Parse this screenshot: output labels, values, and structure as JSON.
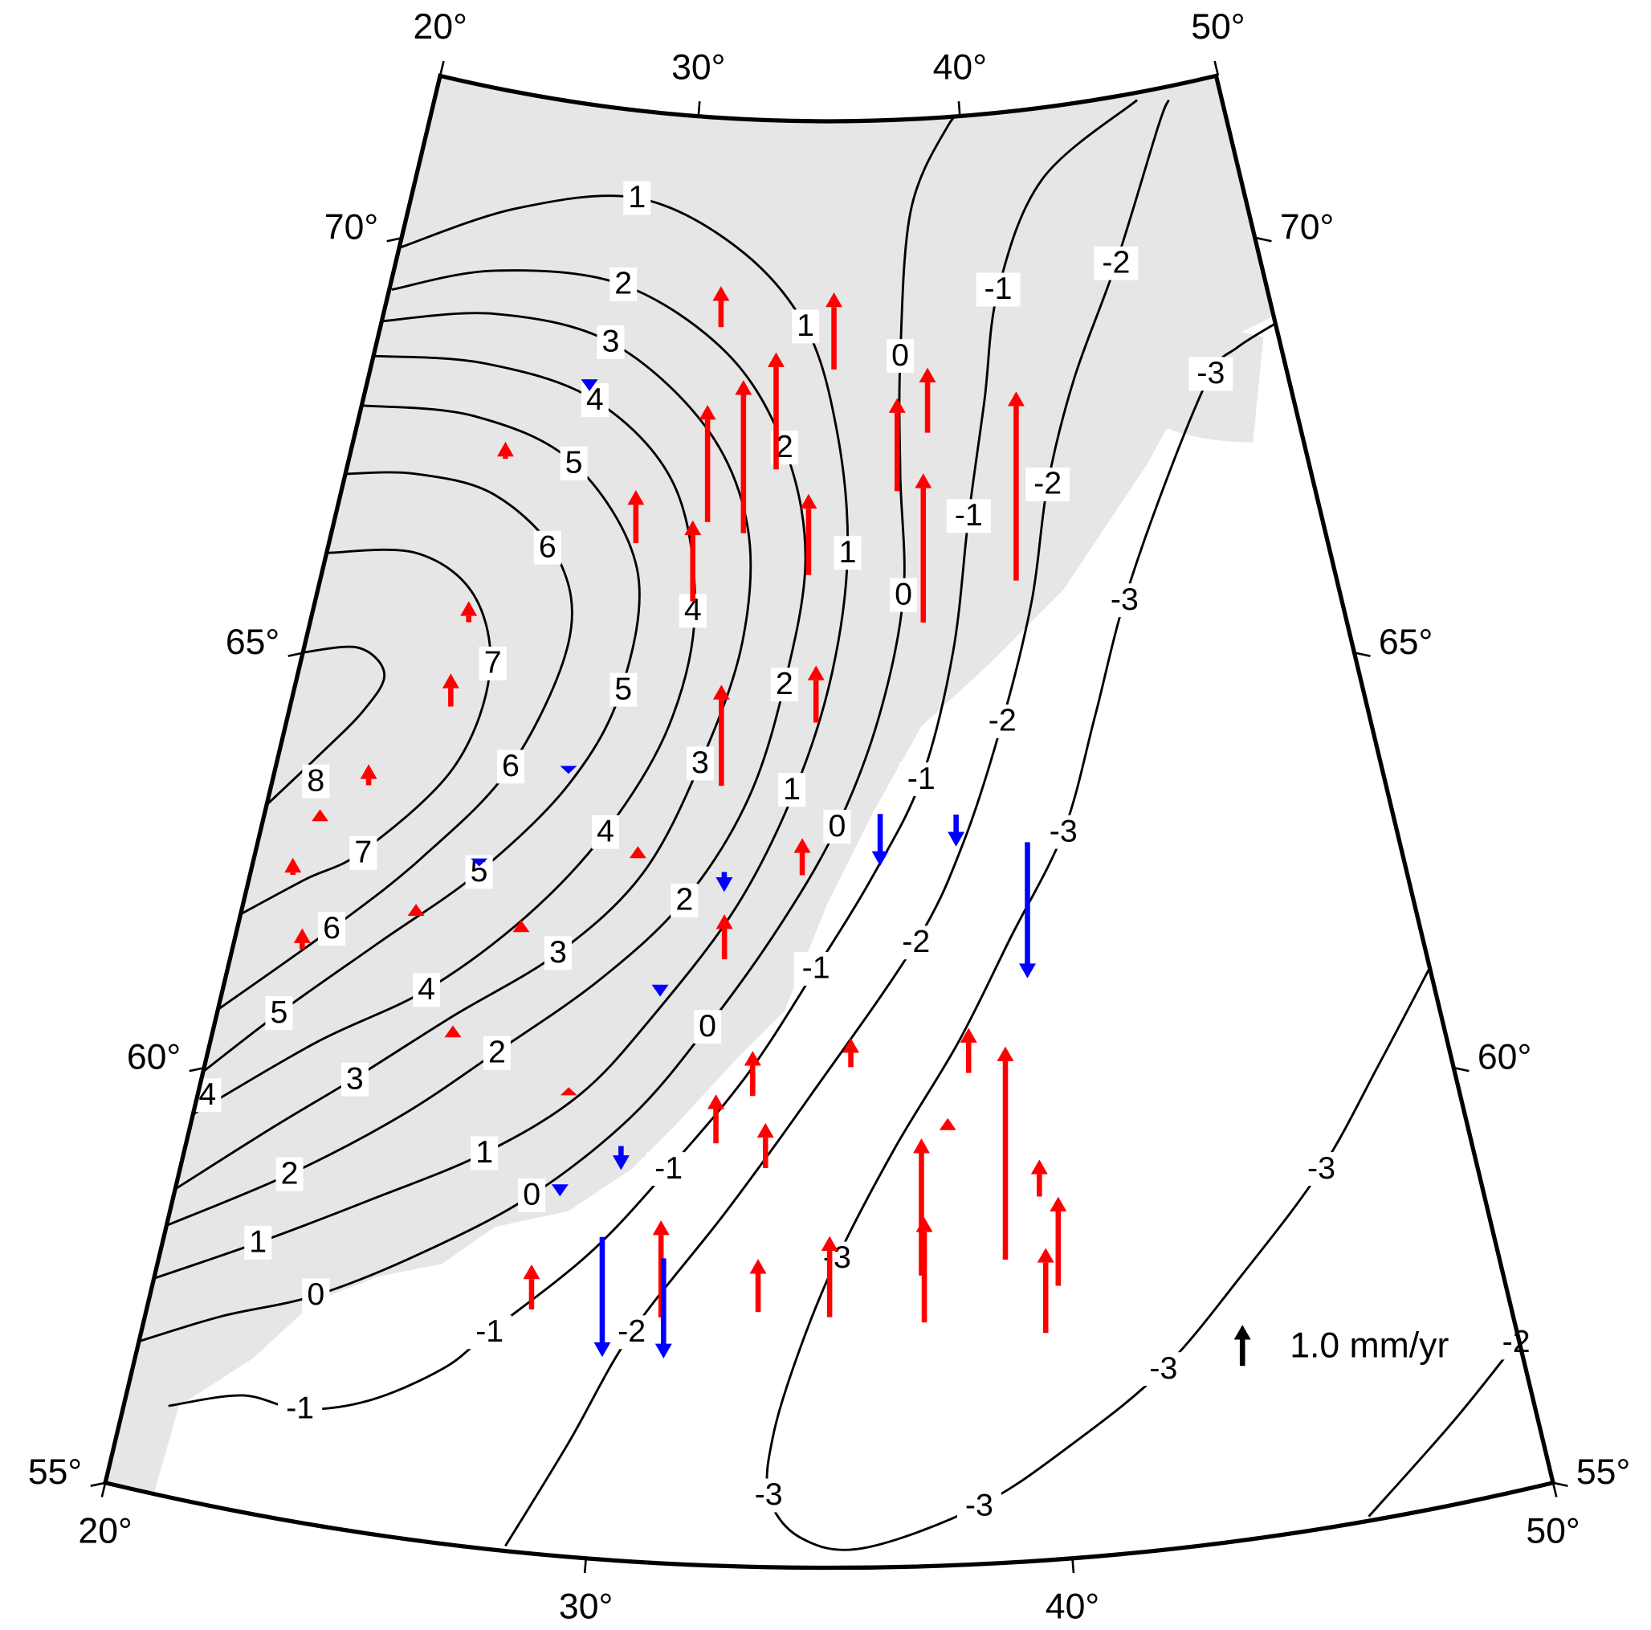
{
  "map": {
    "lon_ticks": [
      {
        "value": 20,
        "label": "20°"
      },
      {
        "value": 30,
        "label": "30°"
      },
      {
        "value": 40,
        "label": "40°"
      },
      {
        "value": 50,
        "label": "50°"
      }
    ],
    "lat_ticks": [
      {
        "value": 55,
        "label": "55°"
      },
      {
        "value": 60,
        "label": "60°"
      },
      {
        "value": 65,
        "label": "65°"
      },
      {
        "value": 70,
        "label": "70°"
      }
    ],
    "contours": [
      {
        "level": 8
      },
      {
        "level": 7
      },
      {
        "level": 6
      },
      {
        "level": 5
      },
      {
        "level": 4
      },
      {
        "level": 3
      },
      {
        "level": 2
      },
      {
        "level": 1
      },
      {
        "level": 0
      },
      {
        "level": -1
      },
      {
        "level": -2
      },
      {
        "level": -3
      }
    ],
    "up_color": "#ff0000",
    "down_color": "#0000ff",
    "legend": {
      "value": 1.0,
      "label": "1.0 mm/yr"
    },
    "sites": [
      {
        "lon": 31.32,
        "lat": 69.52,
        "v": 1.0
      },
      {
        "lon": 35.16,
        "lat": 69.06,
        "v": 1.9
      },
      {
        "lon": 33.32,
        "lat": 67.88,
        "v": 2.9
      },
      {
        "lon": 32.37,
        "lat": 67.12,
        "v": 3.8
      },
      {
        "lon": 31.25,
        "lat": 67.23,
        "v": 2.9
      },
      {
        "lon": 29.11,
        "lat": 66.92,
        "v": 1.3
      },
      {
        "lon": 30.95,
        "lat": 66.29,
        "v": 2.0
      },
      {
        "lon": 34.38,
        "lat": 66.65,
        "v": 2.0
      },
      {
        "lon": 37.13,
        "lat": 67.62,
        "v": 2.3
      },
      {
        "lon": 38.17,
        "lat": 68.29,
        "v": 1.6
      },
      {
        "lon": 37.77,
        "lat": 66.07,
        "v": 3.7
      },
      {
        "lon": 40.6,
        "lat": 66.49,
        "v": 4.7
      },
      {
        "lon": 32.05,
        "lat": 64.15,
        "v": 2.5
      },
      {
        "lon": 34.63,
        "lat": 64.92,
        "v": 1.4
      },
      {
        "lon": 34.29,
        "lat": 63.13,
        "v": 0.9
      },
      {
        "lon": 32.33,
        "lat": 62.12,
        "v": 1.1
      },
      {
        "lon": 33.15,
        "lat": 60.53,
        "v": 1.1
      },
      {
        "lon": 32.31,
        "lat": 59.96,
        "v": 1.2
      },
      {
        "lon": 33.5,
        "lat": 59.69,
        "v": 1.1
      },
      {
        "lon": 28.36,
        "lat": 57.86,
        "v": 1.1
      },
      {
        "lon": 33.41,
        "lat": 58.0,
        "v": 1.3
      },
      {
        "lon": 35.01,
        "lat": 57.95,
        "v": 2.0
      },
      {
        "lon": 31.25,
        "lat": 57.89,
        "v": 2.4
      },
      {
        "lon": 37.12,
        "lat": 57.87,
        "v": 2.6
      },
      {
        "lon": 37.09,
        "lat": 58.42,
        "v": 3.4
      },
      {
        "lon": 39.01,
        "lat": 58.56,
        "v": 5.3
      },
      {
        "lon": 39.8,
        "lat": 57.67,
        "v": 2.1
      },
      {
        "lon": 40.16,
        "lat": 58.21,
        "v": 2.2
      },
      {
        "lon": 38.4,
        "lat": 60.77,
        "v": 1.1
      },
      {
        "lon": 35.53,
        "lat": 60.88,
        "v": 0.7
      },
      {
        "lon": 39.89,
        "lat": 59.27,
        "v": 0.9
      },
      {
        "lon": 36.38,
        "lat": 63.83,
        "v": -1.3
      },
      {
        "lon": 38.43,
        "lat": 63.79,
        "v": -0.8
      },
      {
        "lon": 40.29,
        "lat": 63.41,
        "v": -3.4
      },
      {
        "lon": 31.23,
        "lat": 58.57,
        "v": -2.5
      },
      {
        "lon": 29.8,
        "lat": 58.77,
        "v": -3.0
      },
      {
        "lon": 32.23,
        "lat": 63.13,
        "v": -0.5
      },
      {
        "lon": 24.78,
        "lat": 67.71,
        "v": 0.4
      },
      {
        "lon": 24.48,
        "lat": 65.75,
        "v": 0.5
      },
      {
        "lon": 24.37,
        "lat": 64.74,
        "v": 0.8
      },
      {
        "lon": 22.54,
        "lat": 63.66,
        "v": 0.5
      },
      {
        "lon": 21.47,
        "lat": 63.12,
        "v": 0.3
      },
      {
        "lon": 21.7,
        "lat": 61.62,
        "v": 0.5
      },
      {
        "lon": 24.38,
        "lat": 62.24,
        "v": 0.3
      },
      {
        "lon": 25.76,
        "lat": 60.9,
        "v": 0.3
      },
      {
        "lon": 28.72,
        "lat": 60.39,
        "v": 0.2
      },
      {
        "lon": 29.93,
        "lat": 63.23,
        "v": 0.3
      },
      {
        "lon": 27.1,
        "lat": 62.23,
        "v": 0.3
      },
      {
        "lon": 37.83,
        "lat": 60.1,
        "v": 0.3
      },
      {
        "lon": 21.07,
        "lat": 62.45,
        "v": 0.4
      },
      {
        "lon": 27.1,
        "lat": 68.76,
        "v": -0.3
      },
      {
        "lon": 27.83,
        "lat": 64.23,
        "v": -0.2
      },
      {
        "lon": 25.77,
        "lat": 63.02,
        "v": -0.2
      },
      {
        "lon": 30.07,
        "lat": 59.85,
        "v": -0.6
      },
      {
        "lon": 28.72,
        "lat": 59.34,
        "v": -0.3
      },
      {
        "lon": 30.74,
        "lat": 61.77,
        "v": -0.3
      }
    ]
  }
}
